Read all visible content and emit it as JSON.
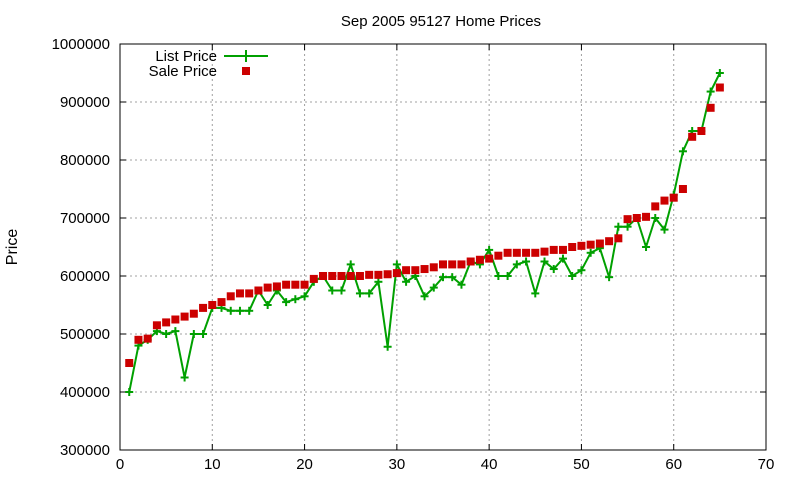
{
  "chart_data": {
    "type": "scatter",
    "title": "Sep 2005 95127 Home Prices",
    "xlabel": "",
    "ylabel": "Price",
    "xlim": [
      0,
      70
    ],
    "ylim": [
      300000,
      1000000
    ],
    "xticks": [
      0,
      10,
      20,
      30,
      40,
      50,
      60,
      70
    ],
    "yticks": [
      300000,
      400000,
      500000,
      600000,
      700000,
      800000,
      900000,
      1000000
    ],
    "grid": true,
    "legend_position": "top-left",
    "series": [
      {
        "name": "List Price",
        "style": "linespoints",
        "marker": "plus",
        "color": "#00a000",
        "x": [
          1,
          2,
          3,
          4,
          5,
          6,
          7,
          8,
          9,
          10,
          11,
          12,
          13,
          14,
          15,
          16,
          17,
          18,
          19,
          20,
          21,
          22,
          23,
          24,
          25,
          26,
          27,
          28,
          29,
          30,
          31,
          32,
          33,
          34,
          35,
          36,
          37,
          38,
          39,
          40,
          41,
          42,
          43,
          44,
          45,
          46,
          47,
          48,
          49,
          50,
          51,
          52,
          53,
          54,
          55,
          56,
          57,
          58,
          59,
          60,
          61,
          62,
          63,
          64,
          65
        ],
        "values": [
          400000,
          480000,
          490000,
          505000,
          500000,
          505000,
          425000,
          500000,
          500000,
          545000,
          545000,
          540000,
          540000,
          540000,
          575000,
          550000,
          575000,
          555000,
          560000,
          565000,
          590000,
          600000,
          575000,
          575000,
          620000,
          570000,
          570000,
          590000,
          478000,
          620000,
          590000,
          600000,
          565000,
          580000,
          598000,
          598000,
          585000,
          625000,
          620000,
          645000,
          600000,
          600000,
          620000,
          625000,
          570000,
          625000,
          612000,
          630000,
          600000,
          610000,
          640000,
          648000,
          598000,
          685000,
          685000,
          700000,
          650000,
          700000,
          680000,
          740000,
          815000,
          850000,
          850000,
          918000,
          950000
        ]
      },
      {
        "name": "Sale Price",
        "style": "points",
        "marker": "square",
        "color": "#cc0000",
        "x": [
          1,
          2,
          3,
          4,
          5,
          6,
          7,
          8,
          9,
          10,
          11,
          12,
          13,
          14,
          15,
          16,
          17,
          18,
          19,
          20,
          21,
          22,
          23,
          24,
          25,
          26,
          27,
          28,
          29,
          30,
          31,
          32,
          33,
          34,
          35,
          36,
          37,
          38,
          39,
          40,
          41,
          42,
          43,
          44,
          45,
          46,
          47,
          48,
          49,
          50,
          51,
          52,
          53,
          54,
          55,
          56,
          57,
          58,
          59,
          60,
          61,
          62,
          63,
          64,
          65
        ],
        "values": [
          450000,
          490000,
          492000,
          515000,
          520000,
          525000,
          530000,
          535000,
          545000,
          550000,
          555000,
          565000,
          570000,
          570000,
          575000,
          580000,
          582000,
          585000,
          585000,
          585000,
          595000,
          600000,
          600000,
          600000,
          600000,
          600000,
          602000,
          602000,
          603000,
          605000,
          610000,
          610000,
          612000,
          615000,
          620000,
          620000,
          620000,
          625000,
          628000,
          630000,
          635000,
          640000,
          640000,
          640000,
          640000,
          642000,
          645000,
          645000,
          650000,
          652000,
          654000,
          656000,
          660000,
          665000,
          698000,
          700000,
          702000,
          720000,
          730000,
          735000,
          750000,
          840000,
          850000,
          890000,
          925000
        ]
      }
    ]
  },
  "colors": {
    "background": "#ffffff",
    "axis": "#000000",
    "grid": "#a0a0a0",
    "list_price": "#00a000",
    "sale_price": "#cc0000"
  }
}
